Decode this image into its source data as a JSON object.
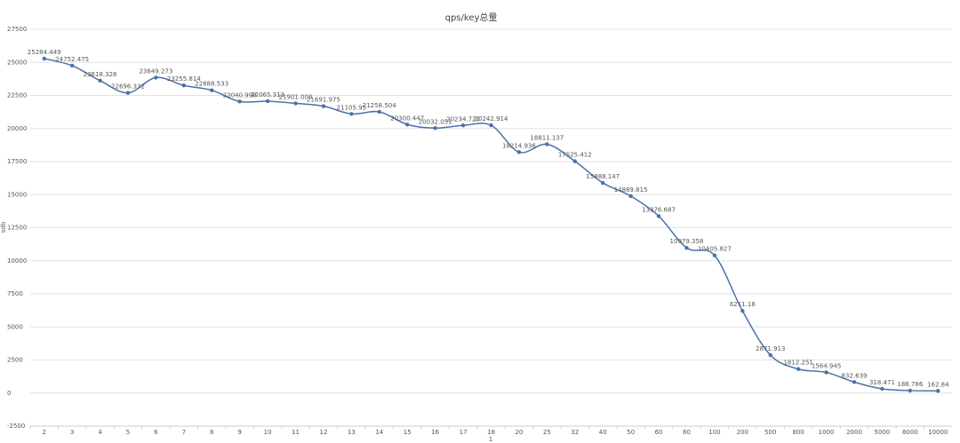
{
  "chart_data": {
    "type": "line",
    "title": "qps/key总量",
    "x_label": "1",
    "y_label": "qps",
    "categories": [
      "2",
      "3",
      "4",
      "5",
      "6",
      "7",
      "8",
      "9",
      "10",
      "11",
      "12",
      "13",
      "14",
      "15",
      "16",
      "17",
      "18",
      "20",
      "25",
      "32",
      "40",
      "50",
      "60",
      "80",
      "100",
      "200",
      "500",
      "800",
      "1000",
      "2000",
      "5000",
      "8000",
      "10000"
    ],
    "series": [
      {
        "name": "qps",
        "color": "#4a72a8",
        "values": [
          25284.449,
          24752.475,
          23618.328,
          22696.332,
          23849.273,
          23255.814,
          22888.533,
          22040.998,
          22065.313,
          21901.008,
          21691.975,
          21105.95,
          21258.504,
          20300.447,
          20032.051,
          20234.723,
          20242.914,
          18214.936,
          18811.137,
          17525.412,
          15888.147,
          14889.815,
          13376.687,
          10979.358,
          10405.827,
          6211.18,
          2871.913,
          1812.251,
          1564.945,
          832.639,
          318.471,
          188.786,
          162.84
        ]
      }
    ],
    "ylim": [
      -2500,
      27500
    ],
    "yticks": [
      -2500,
      0,
      2500,
      5000,
      7500,
      10000,
      12500,
      15000,
      17500,
      20000,
      22500,
      25000,
      27500
    ],
    "grid": true
  }
}
